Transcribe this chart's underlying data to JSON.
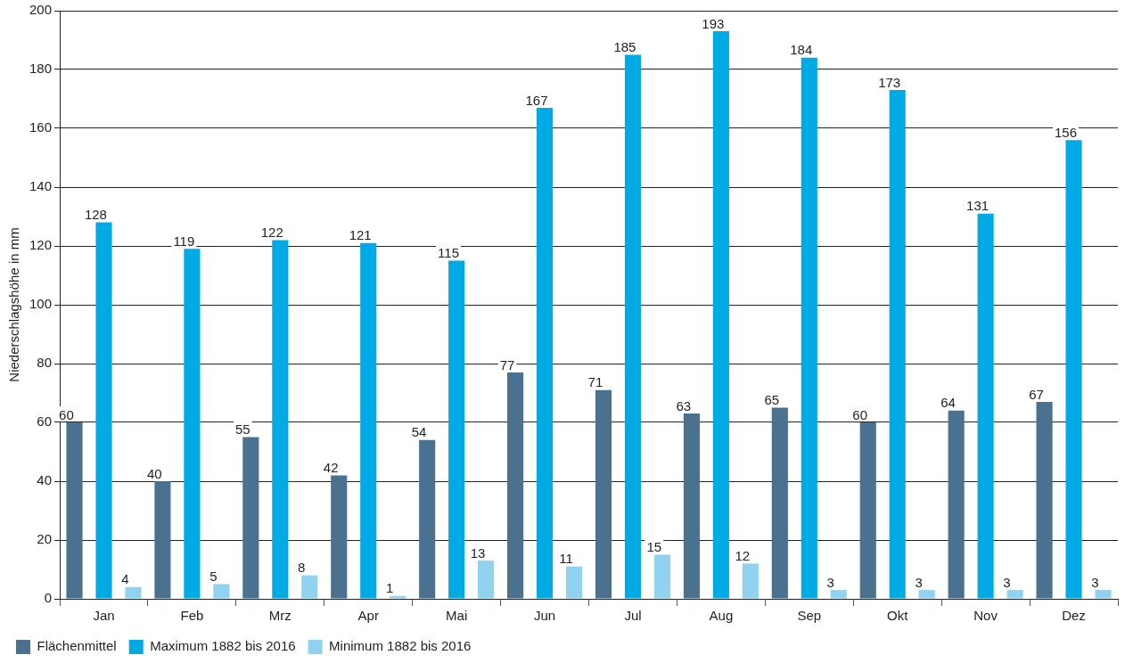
{
  "chart_data": {
    "type": "bar",
    "ylabel": "Niederschlagshöhe in mm",
    "categories": [
      "Jan",
      "Feb",
      "Mrz",
      "Apr",
      "Mai",
      "Jun",
      "Jul",
      "Aug",
      "Sep",
      "Okt",
      "Nov",
      "Dez"
    ],
    "series": [
      {
        "name": "Flächenmittel",
        "color": "#4a7290",
        "values": [
          60,
          40,
          55,
          42,
          54,
          77,
          71,
          63,
          65,
          60,
          64,
          67
        ]
      },
      {
        "name": "Maximum 1882 bis 2016",
        "color": "#00aae4",
        "values": [
          128,
          119,
          122,
          121,
          115,
          167,
          185,
          193,
          184,
          173,
          131,
          156
        ]
      },
      {
        "name": "Minimum 1882 bis 2016",
        "color": "#92d2f1",
        "values": [
          4,
          5,
          8,
          1,
          13,
          11,
          15,
          12,
          3,
          3,
          3,
          3
        ]
      }
    ],
    "ylim": [
      0,
      200
    ],
    "yticks": [
      0,
      20,
      40,
      60,
      80,
      100,
      120,
      140,
      160,
      180,
      200
    ],
    "grid": "y",
    "legend": "bottom",
    "data_labels": true
  }
}
